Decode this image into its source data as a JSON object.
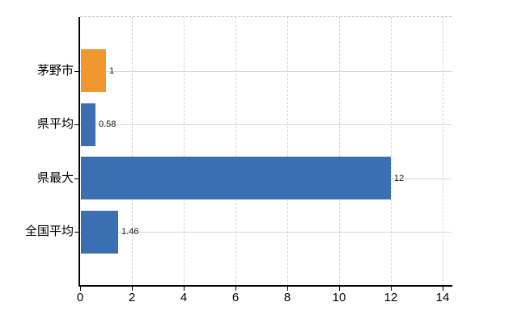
{
  "chart_data": {
    "type": "bar",
    "orientation": "horizontal",
    "title": "",
    "categories": [
      "茅野市",
      "県平均",
      "県最大",
      "全国平均"
    ],
    "values": [
      1,
      0.58,
      12,
      1.46
    ],
    "value_labels": [
      "1",
      "0.58",
      "12",
      "1.46"
    ],
    "bar_colors": [
      "#F0982F",
      "#3A6FB2",
      "#3A6FB2",
      "#3A6FB2"
    ],
    "x_ticks": [
      0,
      2,
      4,
      6,
      8,
      10,
      12,
      14
    ],
    "xlim": [
      0,
      14.35
    ],
    "xlabel": "",
    "ylabel": "",
    "legend": "none",
    "grid": {
      "vertical_style": "dashed",
      "horizontal_style": "solid",
      "grid_color": "#D4DAD4"
    },
    "colors": {
      "highlight_bar": "#F0982F",
      "default_bar": "#3A6FB2",
      "axis": "#000000",
      "background": "#FFFFFF",
      "text": "#000000"
    }
  }
}
